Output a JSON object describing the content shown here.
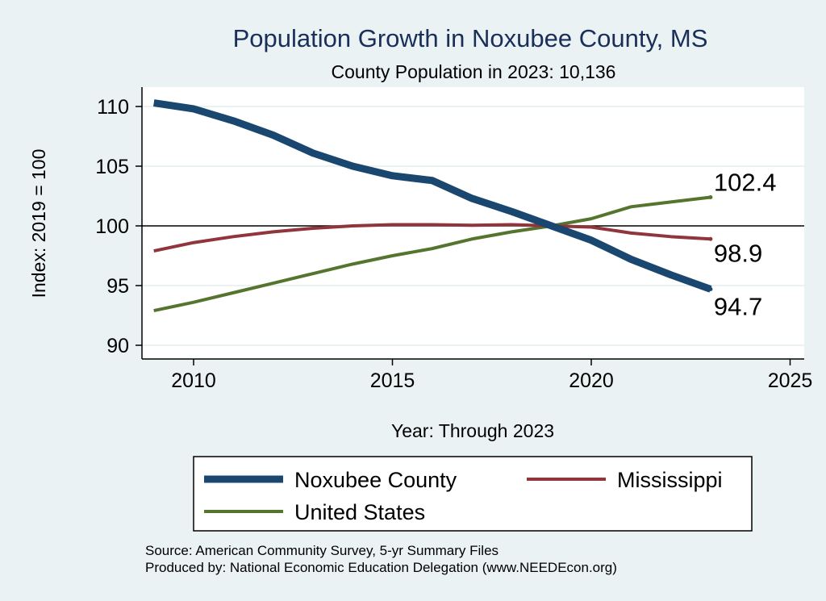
{
  "chart_data": {
    "type": "line",
    "title": "Population Growth in Noxubee County, MS",
    "subtitle": "County Population in 2023: 10,136",
    "xlabel": "Year: Through 2023",
    "ylabel": "Index: 2019 = 100",
    "xlim": [
      2008.8,
      2025.3
    ],
    "ylim": [
      88.9,
      111.7
    ],
    "xticks": [
      "2010",
      "2015",
      "2020",
      "2025"
    ],
    "yticks": [
      "90",
      "95",
      "100",
      "105",
      "110"
    ],
    "reference_line": 100,
    "grid": true,
    "legend_position": "bottom",
    "x": [
      2009,
      2010,
      2011,
      2012,
      2013,
      2014,
      2015,
      2016,
      2017,
      2018,
      2019,
      2020,
      2021,
      2022,
      2023
    ],
    "series": [
      {
        "name": "Noxubee  County",
        "color": "#1a476f",
        "width": 9,
        "end_label": "94.7",
        "values": [
          110.3,
          109.8,
          108.8,
          107.6,
          106.1,
          105.0,
          104.2,
          103.8,
          102.3,
          101.2,
          100.0,
          98.8,
          97.2,
          95.9,
          94.7
        ]
      },
      {
        "name": "Mississippi",
        "color": "#90353b",
        "width": 4,
        "end_label": "98.9",
        "values": [
          97.9,
          98.6,
          99.1,
          99.5,
          99.8,
          100.0,
          100.1,
          100.1,
          100.05,
          100.1,
          100.0,
          99.9,
          99.4,
          99.1,
          98.9
        ]
      },
      {
        "name": "United States",
        "color": "#55752f",
        "width": 4,
        "end_label": "102.4",
        "values": [
          92.9,
          93.6,
          94.4,
          95.2,
          96.0,
          96.8,
          97.5,
          98.1,
          98.9,
          99.5,
          100.0,
          100.6,
          101.6,
          102.0,
          102.4
        ]
      }
    ]
  },
  "notes": [
    "Source: American Community Survey, 5-yr Summary Files",
    "Produced by: National Economic Education Delegation (www.NEEDEcon.org)"
  ]
}
